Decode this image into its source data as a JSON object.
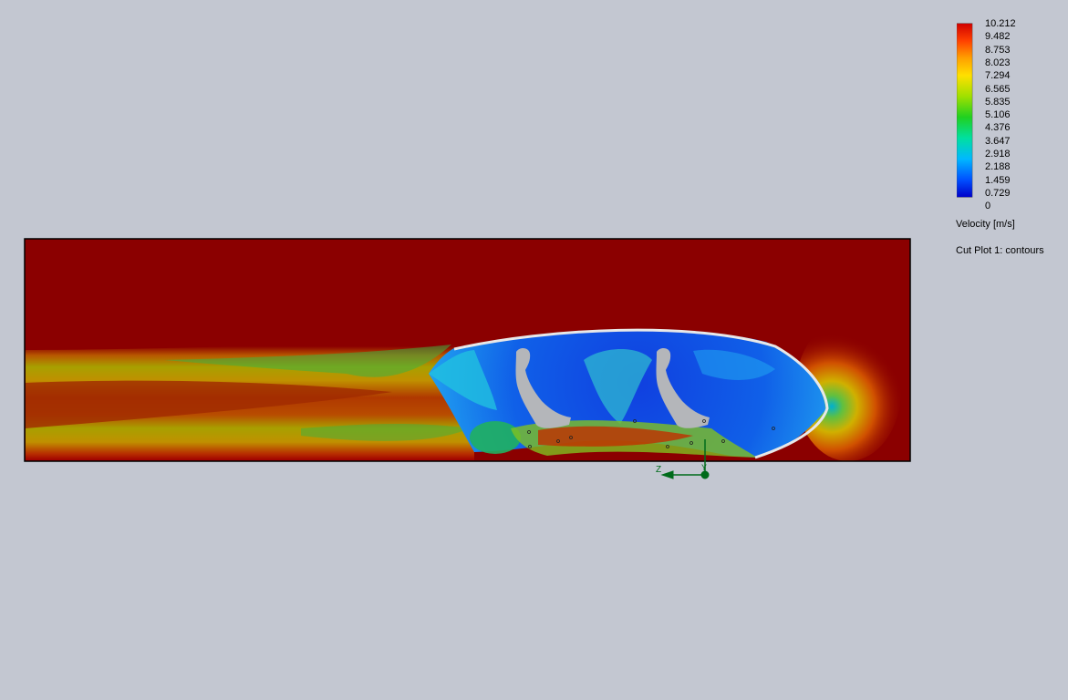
{
  "legend": {
    "ticks": [
      "10.212",
      "9.482",
      "8.753",
      "8.023",
      "7.294",
      "6.565",
      "5.835",
      "5.106",
      "4.376",
      "3.647",
      "2.918",
      "2.188",
      "1.459",
      "0.729",
      "0"
    ],
    "title": "Velocity [m/s]",
    "caption": "Cut Plot 1: contours",
    "gradient": [
      "#0000c8",
      "#0050ff",
      "#00c0ff",
      "#00e080",
      "#40d000",
      "#c8e000",
      "#ffd000",
      "#ff8000",
      "#ff2000",
      "#c80000"
    ]
  },
  "axes_triad": {
    "z_label": "Z",
    "y_label": "Y",
    "color": "#006b1b"
  },
  "colors": {
    "background": "#c3c7d1",
    "domain_free_stream": "#8b0000",
    "occupant_silhouette": "#b4b6ba"
  }
}
